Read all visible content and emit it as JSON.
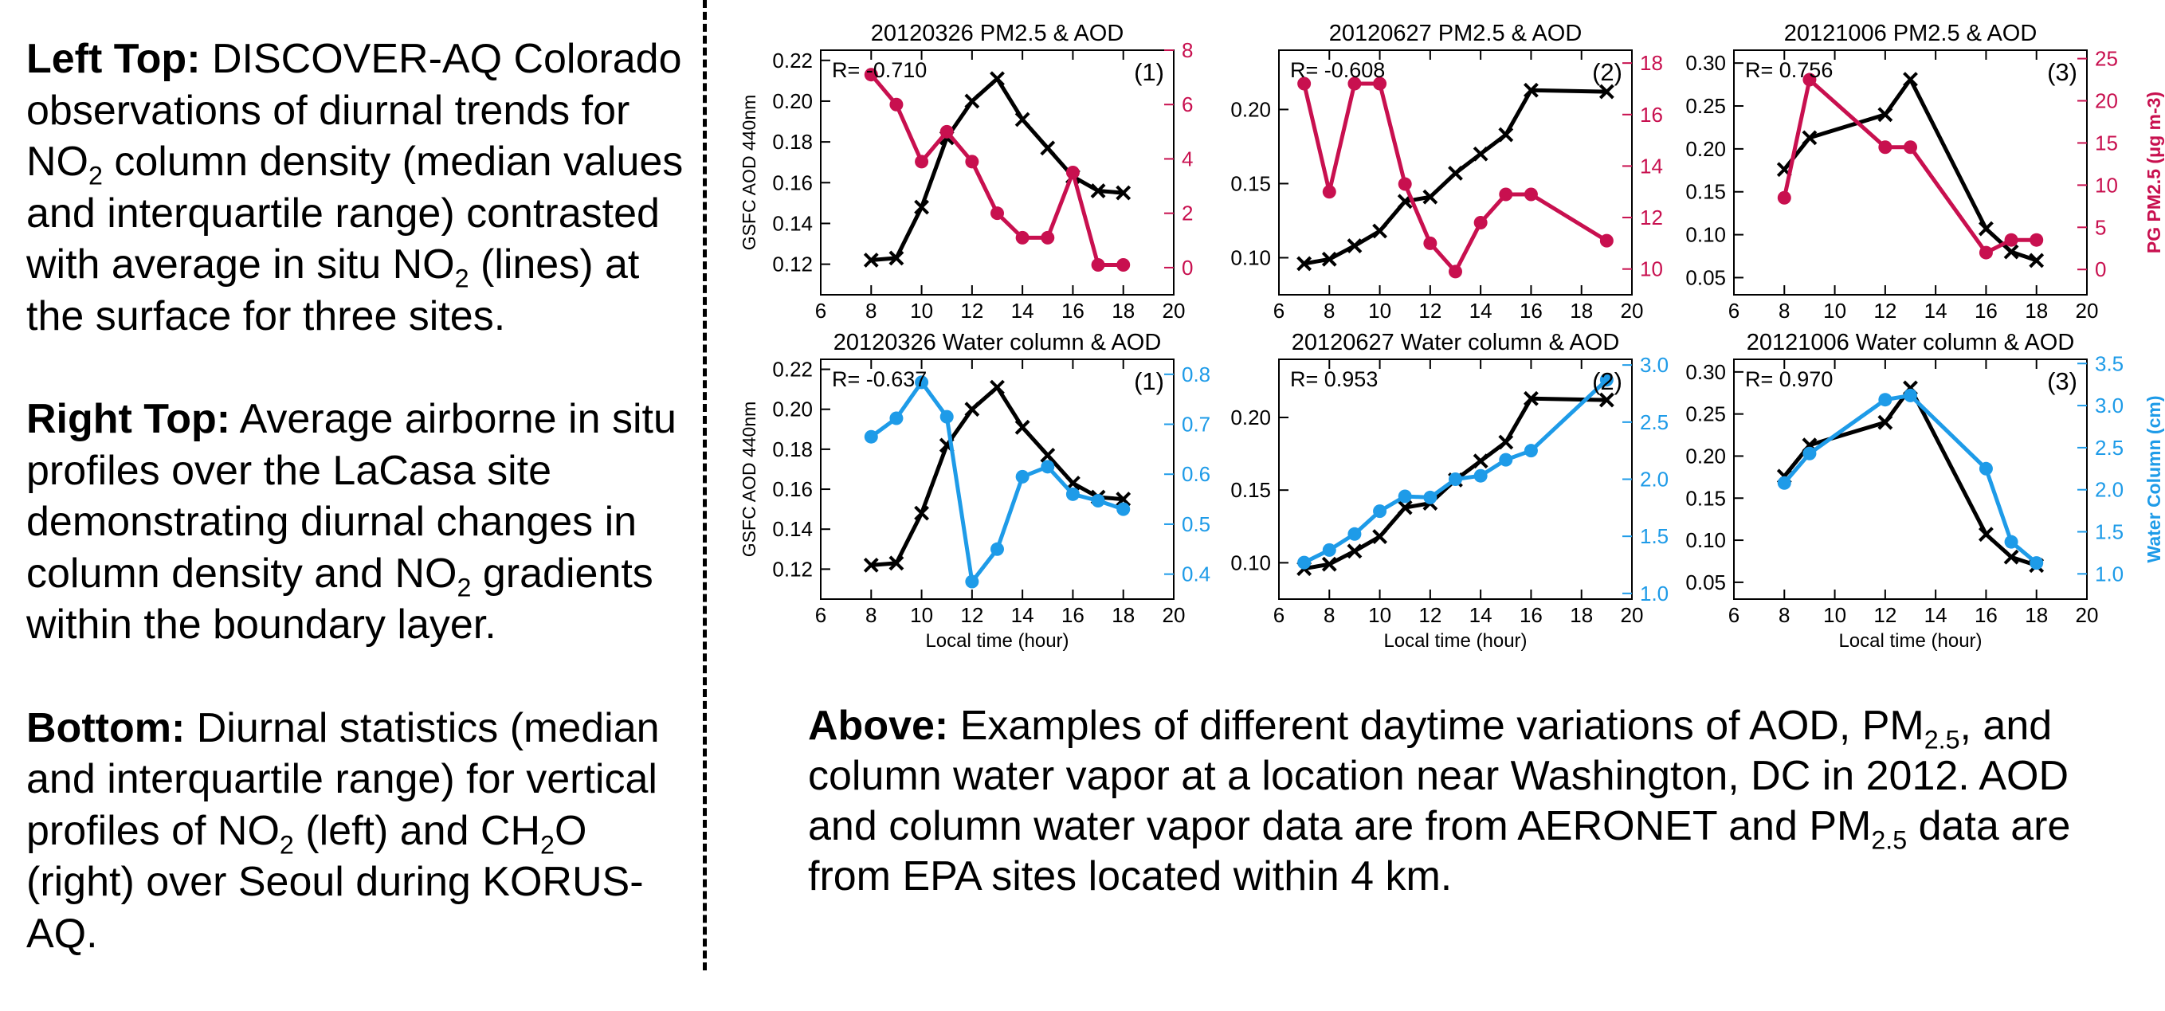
{
  "left_text": {
    "p1_bold": "Left Top:",
    "p1_a": " DISCOVER-AQ Colorado observations of diurnal trends for NO",
    "p1_sub": "2",
    "p1_b": " column density (median values and interquartile range) contrasted with average in situ NO",
    "p1_sub2": "2",
    "p1_c": " (lines) at the surface for three sites.",
    "p2_bold": "Right Top:",
    "p2_a": " Average airborne in situ profiles over the LaCasa site demonstrating diurnal changes in column density and NO",
    "p2_sub": "2",
    "p2_b": " gradients within the boundary layer.",
    "p3_bold": "Bottom:",
    "p3_a": " Diurnal statistics (median and interquartile range) for vertical profiles of NO",
    "p3_sub": "2",
    "p3_b": " (left) and CH",
    "p3_sub2": "2",
    "p3_c": "O (right) over Seoul during KORUS-AQ."
  },
  "caption": {
    "bold": "Above:",
    "a": " Examples of different daytime variations of AOD, PM",
    "sub1": "2.5",
    "b": ", and column water vapor at a location near Washington, DC in 2012. AOD and column water vapor data are from AERONET and PM",
    "sub2": "2.5",
    "c": " data are from EPA sites located within 4 km."
  },
  "colors": {
    "aod": "#000000",
    "pm25": "#c8104f",
    "water": "#1e9be8"
  },
  "chart_data": [
    {
      "type": "line",
      "title": "20120326 PM2.5 & AOD",
      "r_label": "R= -0.710",
      "panel_id": "(1)",
      "xlabel": "",
      "ylabel_left": "GSFC AOD 440nm",
      "ylabel_right": "",
      "xlim": [
        6,
        20
      ],
      "xticks": [
        6,
        8,
        10,
        12,
        14,
        16,
        18,
        20
      ],
      "ylim_left": [
        0.105,
        0.225
      ],
      "yticks_left": [
        0.12,
        0.14,
        0.16,
        0.18,
        0.2,
        0.22
      ],
      "ylim_right": [
        -1,
        8
      ],
      "yticks_right": [
        0,
        2,
        4,
        6,
        8
      ],
      "right_color": "#c8104f",
      "series": [
        {
          "axis": "left",
          "color": "#000000",
          "marker": "x",
          "x": [
            8,
            9,
            10,
            11,
            12,
            13,
            14,
            15,
            16,
            17,
            18
          ],
          "y": [
            0.122,
            0.123,
            0.148,
            0.182,
            0.2,
            0.211,
            0.191,
            0.177,
            0.163,
            0.156,
            0.155
          ]
        },
        {
          "axis": "right",
          "color": "#c8104f",
          "marker": "o",
          "x": [
            8,
            9,
            10,
            11,
            12,
            13,
            14,
            15,
            16,
            17,
            18
          ],
          "y": [
            7.1,
            6.0,
            3.9,
            5.0,
            3.9,
            2.0,
            1.1,
            1.1,
            3.5,
            0.1,
            0.1
          ]
        }
      ]
    },
    {
      "type": "line",
      "title": "20120627 PM2.5 & AOD",
      "r_label": "R= -0.608",
      "panel_id": "(2)",
      "xlabel": "",
      "ylabel_left": "",
      "ylabel_right": "",
      "xlim": [
        6,
        20
      ],
      "xticks": [
        6,
        8,
        10,
        12,
        14,
        16,
        18,
        20
      ],
      "ylim_left": [
        0.075,
        0.24
      ],
      "yticks_left": [
        0.1,
        0.15,
        0.2
      ],
      "ylim_right": [
        9,
        18.5
      ],
      "yticks_right": [
        10,
        12,
        14,
        16,
        18
      ],
      "right_color": "#c8104f",
      "series": [
        {
          "axis": "left",
          "color": "#000000",
          "marker": "x",
          "x": [
            7,
            8,
            9,
            10,
            11,
            12,
            13,
            14,
            15,
            16,
            19
          ],
          "y": [
            0.096,
            0.099,
            0.108,
            0.118,
            0.138,
            0.141,
            0.157,
            0.17,
            0.183,
            0.213,
            0.212
          ]
        },
        {
          "axis": "right",
          "color": "#c8104f",
          "marker": "o",
          "x": [
            7,
            8,
            9,
            10,
            11,
            12,
            13,
            14,
            15,
            16,
            19
          ],
          "y": [
            17.2,
            13.0,
            17.2,
            17.2,
            13.3,
            11.0,
            9.9,
            11.8,
            12.9,
            12.9,
            11.1
          ]
        }
      ]
    },
    {
      "type": "line",
      "title": "20121006 PM2.5 & AOD",
      "r_label": "R= 0.756",
      "panel_id": "(3)",
      "xlabel": "",
      "ylabel_left": "",
      "ylabel_right": "PG PM2.5 (μg m-3)",
      "xlim": [
        6,
        20
      ],
      "xticks": [
        6,
        8,
        10,
        12,
        14,
        16,
        18,
        20
      ],
      "ylim_left": [
        0.03,
        0.315
      ],
      "yticks_left": [
        0.05,
        0.1,
        0.15,
        0.2,
        0.25,
        0.3
      ],
      "ylim_right": [
        -3,
        26
      ],
      "yticks_right": [
        0,
        5,
        10,
        15,
        20,
        25
      ],
      "right_color": "#c8104f",
      "series": [
        {
          "axis": "left",
          "color": "#000000",
          "marker": "x",
          "x": [
            8,
            9,
            12,
            13,
            16,
            17,
            18
          ],
          "y": [
            0.176,
            0.213,
            0.24,
            0.281,
            0.107,
            0.08,
            0.07
          ]
        },
        {
          "axis": "right",
          "color": "#c8104f",
          "marker": "o",
          "x": [
            8,
            9,
            12,
            13,
            16,
            17,
            18
          ],
          "y": [
            8.5,
            22.5,
            14.5,
            14.5,
            2.0,
            3.5,
            3.5
          ]
        }
      ]
    },
    {
      "type": "line",
      "title": "20120326 Water column & AOD",
      "r_label": "R= -0.637",
      "panel_id": "(1)",
      "xlabel": "Local time (hour)",
      "ylabel_left": "GSFC AOD 440nm",
      "ylabel_right": "",
      "xlim": [
        6,
        20
      ],
      "xticks": [
        6,
        8,
        10,
        12,
        14,
        16,
        18,
        20
      ],
      "ylim_left": [
        0.105,
        0.225
      ],
      "yticks_left": [
        0.12,
        0.14,
        0.16,
        0.18,
        0.2,
        0.22
      ],
      "ylim_right": [
        0.35,
        0.83
      ],
      "yticks_right": [
        0.4,
        0.5,
        0.6,
        0.7,
        0.8
      ],
      "right_color": "#1e9be8",
      "series": [
        {
          "axis": "left",
          "color": "#000000",
          "marker": "x",
          "x": [
            8,
            9,
            10,
            11,
            12,
            13,
            14,
            15,
            16,
            17,
            18
          ],
          "y": [
            0.122,
            0.123,
            0.148,
            0.182,
            0.2,
            0.211,
            0.191,
            0.177,
            0.163,
            0.156,
            0.155
          ]
        },
        {
          "axis": "right",
          "color": "#1e9be8",
          "marker": "o",
          "x": [
            8,
            9,
            10,
            11,
            12,
            13,
            14,
            15,
            16,
            17,
            18
          ],
          "y": [
            0.675,
            0.712,
            0.784,
            0.715,
            0.385,
            0.45,
            0.595,
            0.615,
            0.56,
            0.547,
            0.53
          ]
        }
      ]
    },
    {
      "type": "line",
      "title": "20120627 Water column & AOD",
      "r_label": "R= 0.953",
      "panel_id": "(2)",
      "xlabel": "Local time (hour)",
      "ylabel_left": "",
      "ylabel_right": "",
      "xlim": [
        6,
        20
      ],
      "xticks": [
        6,
        8,
        10,
        12,
        14,
        16,
        18,
        20
      ],
      "ylim_left": [
        0.075,
        0.24
      ],
      "yticks_left": [
        0.1,
        0.15,
        0.2
      ],
      "ylim_right": [
        0.95,
        3.05
      ],
      "yticks_right": [
        1.0,
        1.5,
        2.0,
        2.5,
        3.0
      ],
      "right_color": "#1e9be8",
      "series": [
        {
          "axis": "left",
          "color": "#000000",
          "marker": "x",
          "x": [
            7,
            8,
            9,
            10,
            11,
            12,
            13,
            14,
            15,
            16,
            19
          ],
          "y": [
            0.096,
            0.099,
            0.108,
            0.118,
            0.138,
            0.141,
            0.157,
            0.17,
            0.183,
            0.213,
            0.212
          ]
        },
        {
          "axis": "right",
          "color": "#1e9be8",
          "marker": "o",
          "x": [
            7,
            8,
            9,
            10,
            11,
            12,
            13,
            14,
            15,
            16,
            19
          ],
          "y": [
            1.27,
            1.38,
            1.52,
            1.72,
            1.85,
            1.84,
            2.0,
            2.03,
            2.17,
            2.25,
            2.87
          ]
        }
      ]
    },
    {
      "type": "line",
      "title": "20121006 Water column & AOD",
      "r_label": "R= 0.970",
      "panel_id": "(3)",
      "xlabel": "Local time (hour)",
      "ylabel_left": "",
      "ylabel_right": "Water Column (cm)",
      "xlim": [
        6,
        20
      ],
      "xticks": [
        6,
        8,
        10,
        12,
        14,
        16,
        18,
        20
      ],
      "ylim_left": [
        0.03,
        0.315
      ],
      "yticks_left": [
        0.05,
        0.1,
        0.15,
        0.2,
        0.25,
        0.3
      ],
      "ylim_right": [
        0.7,
        3.55
      ],
      "yticks_right": [
        1.0,
        1.5,
        2.0,
        2.5,
        3.0,
        3.5
      ],
      "right_color": "#1e9be8",
      "series": [
        {
          "axis": "left",
          "color": "#000000",
          "marker": "x",
          "x": [
            8,
            9,
            12,
            13,
            16,
            17,
            18
          ],
          "y": [
            0.176,
            0.213,
            0.24,
            0.281,
            0.107,
            0.08,
            0.07
          ]
        },
        {
          "axis": "right",
          "color": "#1e9be8",
          "marker": "o",
          "x": [
            8,
            9,
            12,
            13,
            16,
            17,
            18
          ],
          "y": [
            2.08,
            2.43,
            3.07,
            3.12,
            2.25,
            1.38,
            1.13
          ]
        }
      ]
    }
  ]
}
